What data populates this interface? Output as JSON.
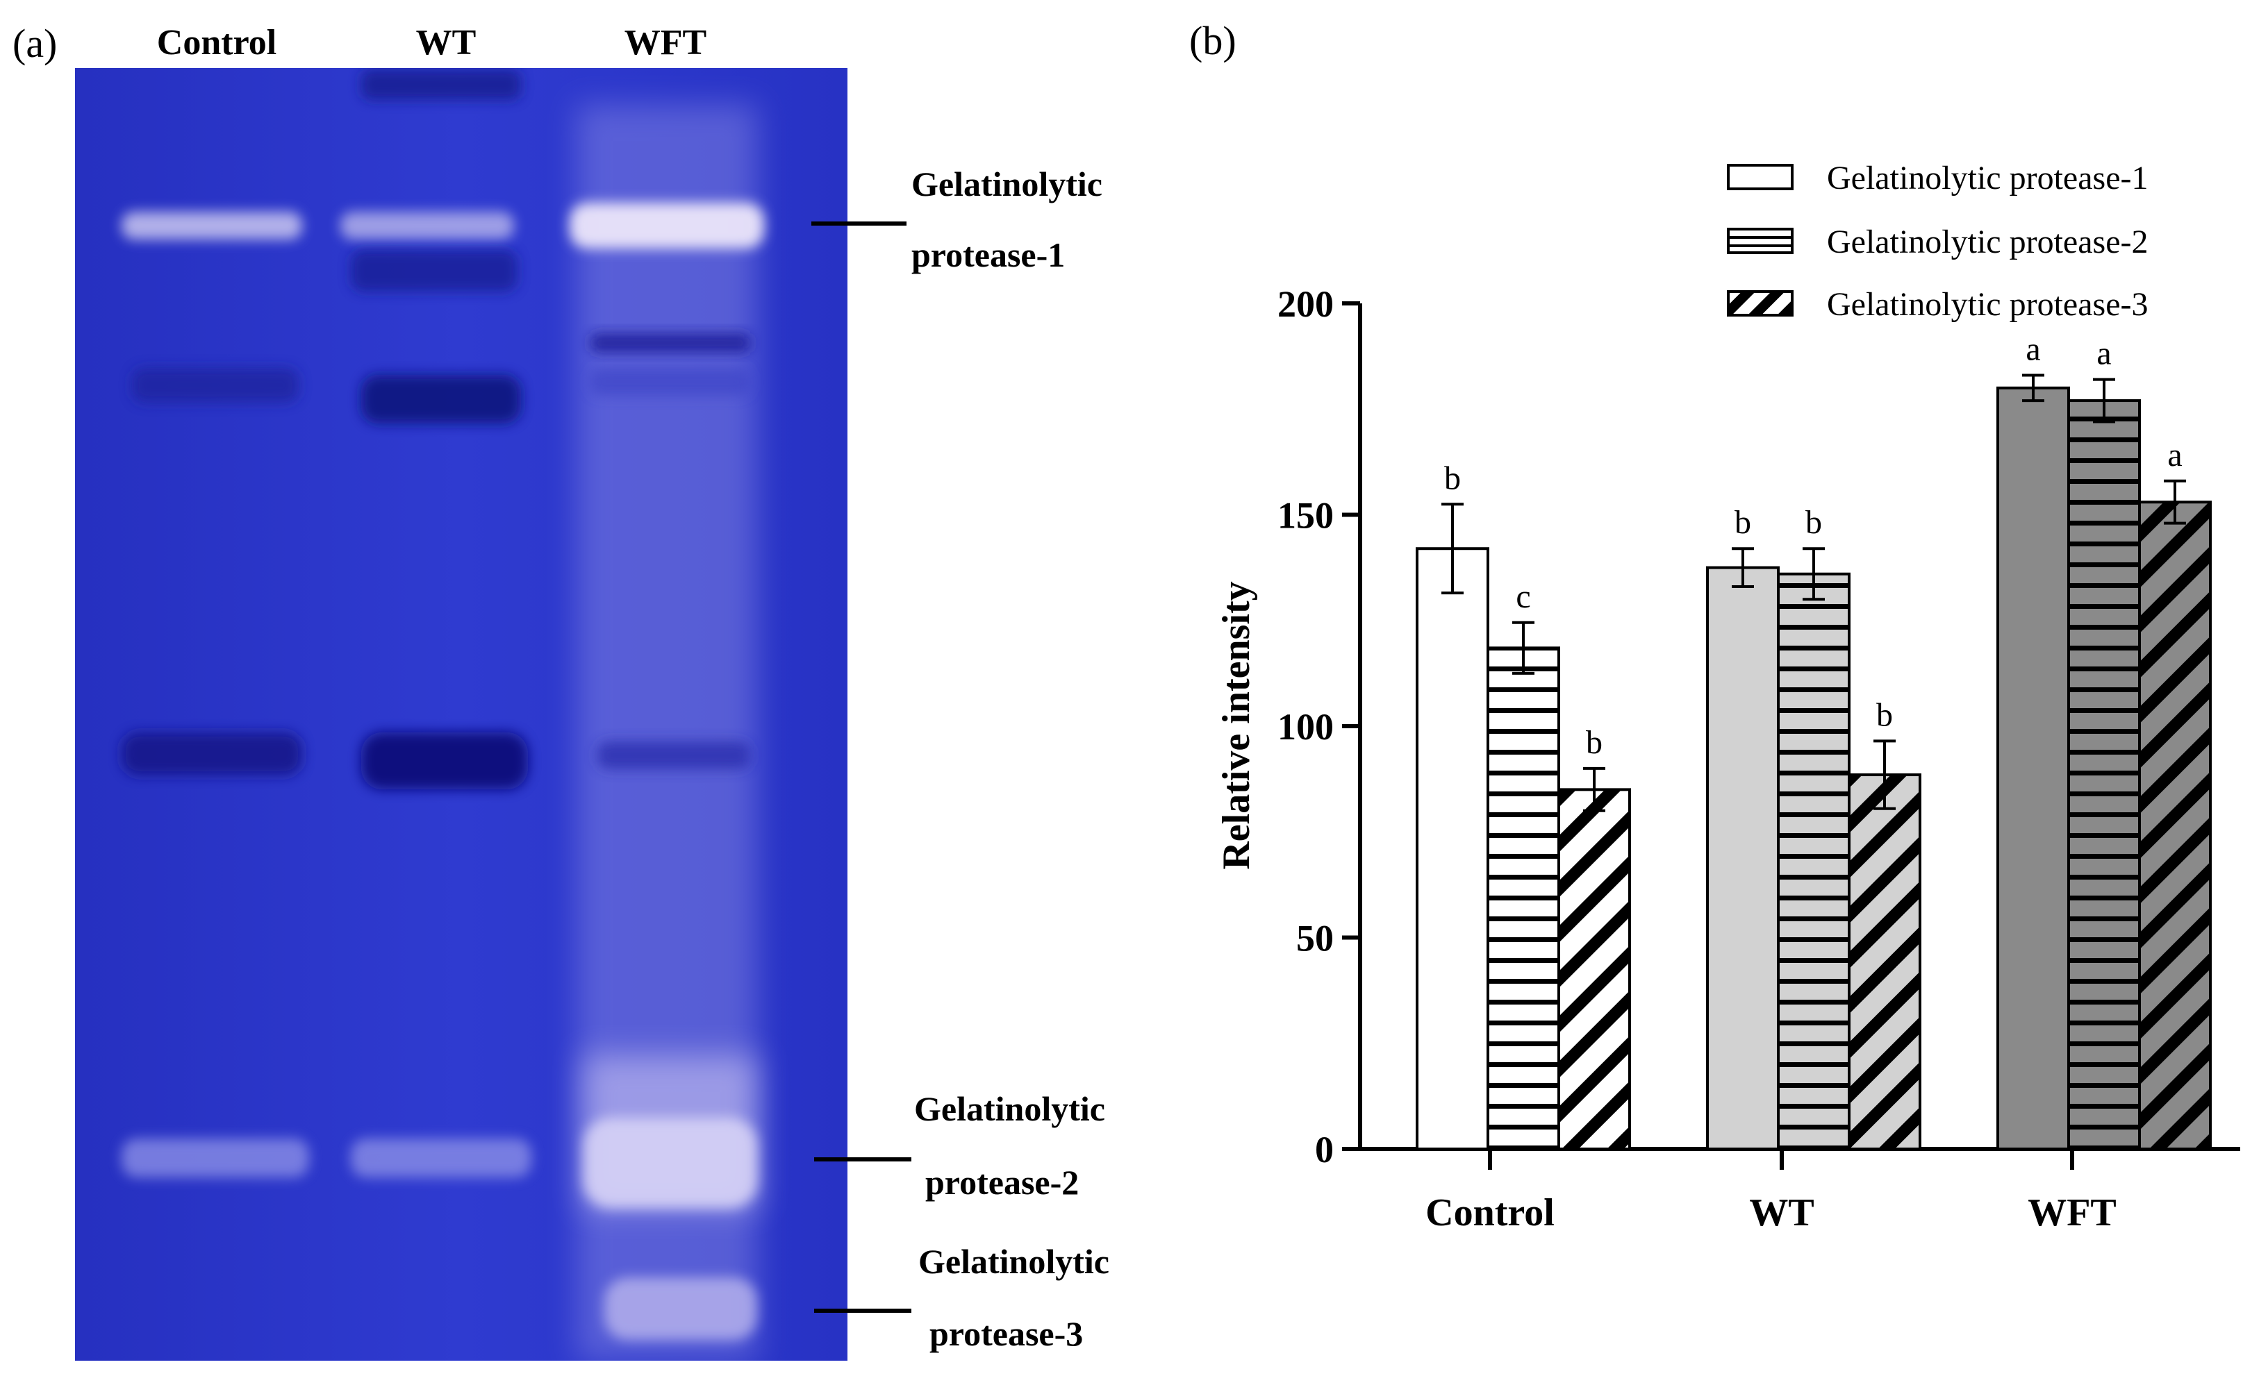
{
  "figure": {
    "panel_a_label": "(a)",
    "panel_b_label": "(b)"
  },
  "gel": {
    "lanes": [
      "Control",
      "WT",
      "WFT"
    ],
    "band_labels": [
      {
        "line1": "Gelatinolytic",
        "line2": "protease-1"
      },
      {
        "line1": "Gelatinolytic",
        "line2": "protease-2"
      },
      {
        "line1": "Gelatinolytic",
        "line2": "protease-3"
      }
    ],
    "colors": {
      "gel_base": "#2b35c8",
      "gel_dark": "#1a1f9a",
      "band_light": "#c9c6f0"
    }
  },
  "chart_data": {
    "type": "bar",
    "title": "",
    "xlabel": "",
    "ylabel": "Relative intensity",
    "ylim": [
      0,
      200
    ],
    "yticks": [
      0,
      50,
      100,
      150,
      200
    ],
    "categories": [
      "Control",
      "WT",
      "WFT"
    ],
    "series": [
      {
        "name": "Gelatinolytic protease-1",
        "pattern": "solid",
        "values": [
          142,
          137.5,
          180
        ],
        "errors": [
          10.5,
          4.5,
          3
        ],
        "letters": [
          "b",
          "b",
          "a"
        ]
      },
      {
        "name": "Gelatinolytic protease-2",
        "pattern": "horizontal-lines",
        "values": [
          118.5,
          136,
          177
        ],
        "errors": [
          6,
          6,
          5
        ],
        "letters": [
          "c",
          "b",
          "a"
        ]
      },
      {
        "name": "Gelatinolytic protease-3",
        "pattern": "diagonal-stripes",
        "values": [
          85,
          88.5,
          153
        ],
        "errors": [
          5,
          8,
          5
        ],
        "letters": [
          "b",
          "b",
          "a"
        ]
      }
    ],
    "category_fills": [
      "#ffffff",
      "#d2d2d2",
      "#8a8a8a"
    ],
    "legend_position": "top-right",
    "grid": false
  }
}
